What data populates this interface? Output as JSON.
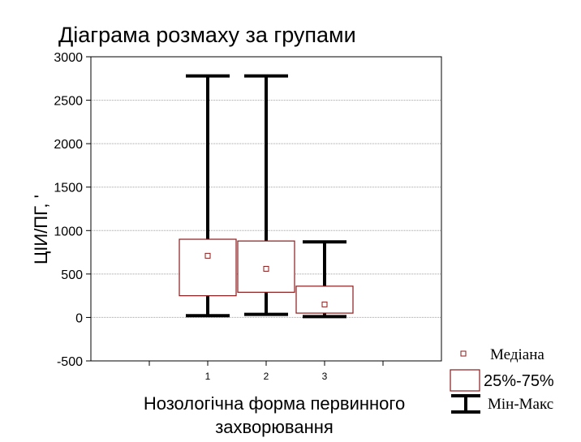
{
  "chart_data": {
    "type": "boxplot",
    "title": "Діаграма розмаху за групами",
    "xlabel": "Нозологічна форма первинного захворювання",
    "ylabel": "ЦІИ/ПГ, '",
    "ylim": [
      -500,
      3000
    ],
    "yticks": [
      -500,
      0,
      500,
      1000,
      1500,
      2000,
      2500,
      3000
    ],
    "xlim": [
      0,
      6
    ],
    "categories": [
      "1",
      "2",
      "3"
    ],
    "grid": true,
    "series": [
      {
        "category": "1",
        "min": 20,
        "q1": 250,
        "median": 710,
        "q3": 900,
        "max": 2780
      },
      {
        "category": "2",
        "min": 35,
        "q1": 290,
        "median": 560,
        "q3": 880,
        "max": 2780
      },
      {
        "category": "3",
        "min": 10,
        "q1": 50,
        "median": 150,
        "q3": 360,
        "max": 870
      }
    ],
    "legend": {
      "placement": "bottom-right",
      "items": [
        {
          "key": "median",
          "label": "Медіана"
        },
        {
          "key": "box",
          "label": "25%-75%"
        },
        {
          "key": "range",
          "label": "Мін-Макс"
        }
      ]
    },
    "colors": {
      "box": "#8b1a1a",
      "whisker": "#000000",
      "grid": "#a0a0a0",
      "background": "#ffffff"
    }
  }
}
